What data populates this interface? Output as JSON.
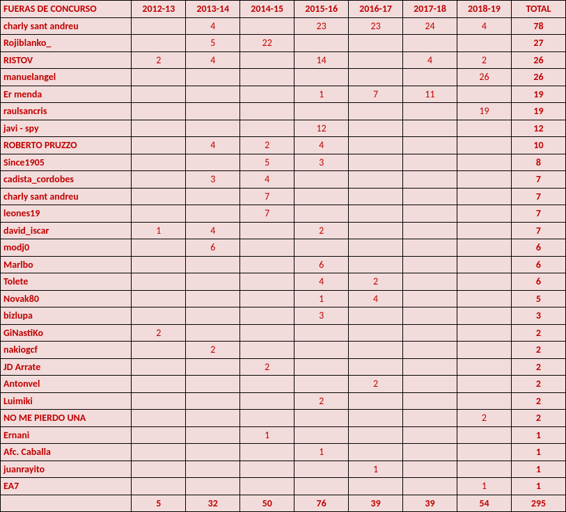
{
  "table": {
    "type": "table",
    "header_label": "FUERAS DE CONCURSO",
    "total_label": "TOTAL",
    "years": [
      "2012-13",
      "2013-14",
      "2014-15",
      "2015-16",
      "2016-17",
      "2017-18",
      "2018-19"
    ],
    "header_bg": "#f2dcdb",
    "row_bg": "#f2dcdb",
    "text_color": "#c00000",
    "border_color": "#000000",
    "font_size": 14,
    "name_col_width": 174,
    "year_col_width": 72,
    "total_col_width": 72,
    "rows": [
      {
        "name": "charly sant andreu",
        "vals": [
          "",
          "4",
          "",
          "23",
          "23",
          "24",
          "4"
        ],
        "total": "78"
      },
      {
        "name": "Rojiblanko_",
        "vals": [
          "",
          "5",
          "22",
          "",
          "",
          "",
          ""
        ],
        "total": "27"
      },
      {
        "name": "RISTOV",
        "vals": [
          "2",
          "4",
          "",
          "14",
          "",
          "4",
          "2"
        ],
        "total": "26"
      },
      {
        "name": "manuelangel",
        "vals": [
          "",
          "",
          "",
          "",
          "",
          "",
          "26"
        ],
        "total": "26"
      },
      {
        "name": "Er menda",
        "vals": [
          "",
          "",
          "",
          "1",
          "7",
          "11",
          ""
        ],
        "total": "19"
      },
      {
        "name": "raulsancris",
        "vals": [
          "",
          "",
          "",
          "",
          "",
          "",
          "19"
        ],
        "total": "19"
      },
      {
        "name": "javi - spy",
        "vals": [
          "",
          "",
          "",
          "12",
          "",
          "",
          ""
        ],
        "total": "12"
      },
      {
        "name": "ROBERTO PRUZZO",
        "vals": [
          "",
          "4",
          "2",
          "4",
          "",
          "",
          ""
        ],
        "total": "10"
      },
      {
        "name": "Since1905",
        "vals": [
          "",
          "",
          "5",
          "3",
          "",
          "",
          ""
        ],
        "total": "8"
      },
      {
        "name": "cadista_cordobes",
        "vals": [
          "",
          "3",
          "4",
          "",
          "",
          "",
          ""
        ],
        "total": "7"
      },
      {
        "name": "charly sant andreu",
        "vals": [
          "",
          "",
          "7",
          "",
          "",
          "",
          ""
        ],
        "total": "7"
      },
      {
        "name": "leones19",
        "vals": [
          "",
          "",
          "7",
          "",
          "",
          "",
          ""
        ],
        "total": "7"
      },
      {
        "name": "david_iscar",
        "vals": [
          "1",
          "4",
          "",
          "2",
          "",
          "",
          ""
        ],
        "total": "7"
      },
      {
        "name": "modj0",
        "vals": [
          "",
          "6",
          "",
          "",
          "",
          "",
          ""
        ],
        "total": "6"
      },
      {
        "name": "Marlbo",
        "vals": [
          "",
          "",
          "",
          "6",
          "",
          "",
          ""
        ],
        "total": "6"
      },
      {
        "name": "Tolete",
        "vals": [
          "",
          "",
          "",
          "4",
          "2",
          "",
          ""
        ],
        "total": "6"
      },
      {
        "name": "Novak80",
        "vals": [
          "",
          "",
          "",
          "1",
          "4",
          "",
          ""
        ],
        "total": "5"
      },
      {
        "name": "bizlupa",
        "vals": [
          "",
          "",
          "",
          "3",
          "",
          "",
          ""
        ],
        "total": "3"
      },
      {
        "name": "GiNastiKo",
        "vals": [
          "2",
          "",
          "",
          "",
          "",
          "",
          ""
        ],
        "total": "2"
      },
      {
        "name": "nakiogcf",
        "vals": [
          "",
          "2",
          "",
          "",
          "",
          "",
          ""
        ],
        "total": "2"
      },
      {
        "name": "JD Arrate",
        "vals": [
          "",
          "",
          "2",
          "",
          "",
          "",
          ""
        ],
        "total": "2"
      },
      {
        "name": "Antonvel",
        "vals": [
          "",
          "",
          "",
          "",
          "2",
          "",
          ""
        ],
        "total": "2"
      },
      {
        "name": "Luimiki",
        "vals": [
          "",
          "",
          "",
          "2",
          "",
          "",
          ""
        ],
        "total": "2"
      },
      {
        "name": "NO ME PIERDO UNA",
        "vals": [
          "",
          "",
          "",
          "",
          "",
          "",
          "2"
        ],
        "total": "2"
      },
      {
        "name": "Ernani",
        "vals": [
          "",
          "",
          "1",
          "",
          "",
          "",
          ""
        ],
        "total": "1"
      },
      {
        "name": "Afc. Caballa",
        "vals": [
          "",
          "",
          "",
          "1",
          "",
          "",
          ""
        ],
        "total": "1"
      },
      {
        "name": "juanrayito",
        "vals": [
          "",
          "",
          "",
          "",
          "1",
          "",
          ""
        ],
        "total": "1"
      },
      {
        "name": "EA7",
        "vals": [
          "",
          "",
          "",
          "",
          "",
          "",
          "1"
        ],
        "total": "1"
      }
    ],
    "footer": {
      "vals": [
        "5",
        "32",
        "50",
        "76",
        "39",
        "39",
        "54"
      ],
      "total": "295"
    }
  }
}
